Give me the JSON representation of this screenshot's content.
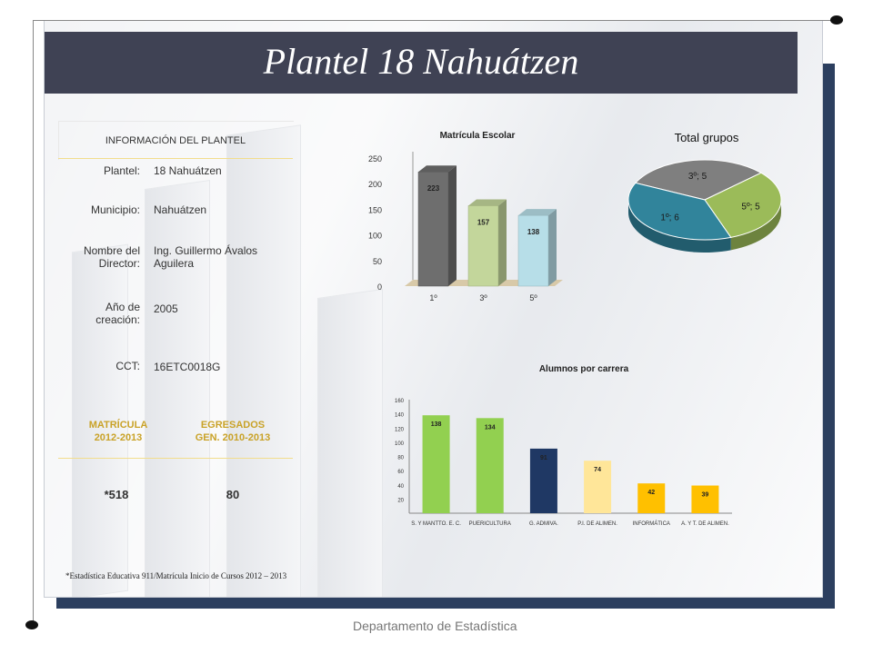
{
  "title": "Plantel 18 Nahuátzen",
  "info_panel": {
    "heading": "INFORMACIÓN DEL PLANTEL",
    "fields": [
      {
        "label": "Plantel:",
        "value": "18 Nahuátzen"
      },
      {
        "label": "Municipio:",
        "value": "Nahuátzen"
      },
      {
        "label": "Nombre del Director:",
        "value": "Ing. Guillermo Ávalos Aguilera"
      },
      {
        "label": "Año de creación:",
        "value": "2005"
      },
      {
        "label": "CCT:",
        "value": "16ETC0018G"
      }
    ],
    "matricula_label": "MATRÍCULA 2012-2013",
    "egresados_label": "EGRESADOS GEN. 2010-2013",
    "matricula_value": "*518",
    "egresados_value": "80"
  },
  "footnote": "*Estadística Educativa 911/Matrícula Inicio de Cursos 2012 – 2013",
  "footer": "Departamento de Estadística",
  "colors": {
    "header_bg": "#3f4254",
    "frame_shadow": "#2c3f5f",
    "accent_gold": "#c9a227"
  },
  "chart_data": [
    {
      "type": "bar",
      "title": "Matrícula Escolar",
      "categories": [
        "1º",
        "3º",
        "5º"
      ],
      "values": [
        223,
        157,
        138
      ],
      "colors": [
        "#6e6e6e",
        "#c3d69b",
        "#b7dee8"
      ],
      "ylim": [
        0,
        250
      ],
      "yticks": [
        "0",
        "50",
        "100",
        "150",
        "200",
        "250"
      ]
    },
    {
      "type": "pie",
      "title": "Total grupos",
      "slices": [
        {
          "label": "1º; 6",
          "value": 6,
          "color": "#31849b"
        },
        {
          "label": "3º; 5",
          "value": 5,
          "color": "#7f7f7f"
        },
        {
          "label": "5º; 5",
          "value": 5,
          "color": "#9bbb59"
        }
      ]
    },
    {
      "type": "bar",
      "title": "Alumnos por carrera",
      "categories": [
        "S. Y MANTTO. E. C.",
        "PUERICULTURA",
        "G. ADMIVA.",
        "P.I. DE ALIMEN.",
        "INFORMÁTICA",
        "A. Y T. DE ALIMEN."
      ],
      "values": [
        138,
        134,
        91,
        74,
        42,
        39
      ],
      "colors": [
        "#92d050",
        "#92d050",
        "#1f3864",
        "#ffe699",
        "#ffc000",
        "#ffc000"
      ],
      "ylim": [
        0,
        160
      ],
      "yticks": [
        "20",
        "40",
        "60",
        "80",
        "100",
        "120",
        "140",
        "160"
      ]
    }
  ]
}
